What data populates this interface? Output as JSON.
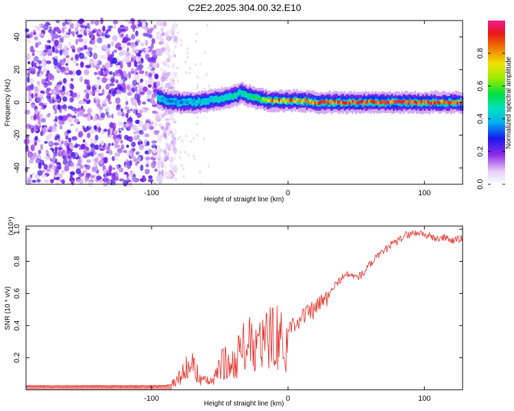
{
  "title": "C2E2.2025.304.00.32.E10",
  "colors": {
    "trace": "#e8302a",
    "axis": "#000000"
  },
  "chart_data": [
    {
      "type": "heatmap",
      "title": "C2E2.2025.304.00.32.E10",
      "xlabel": "Height of straight line (km)",
      "ylabel": "Frequency (Hz)",
      "xlim": [
        -192,
        128
      ],
      "ylim": [
        -50,
        50
      ],
      "x_ticks": [
        -100,
        0,
        100
      ],
      "y_ticks": [
        -40,
        -20,
        0,
        20,
        40
      ],
      "colorbar": {
        "label": "Normalized spectral amplitude",
        "range": [
          0,
          1
        ],
        "ticks": [
          0.0,
          0.2,
          0.4,
          0.6,
          0.8
        ],
        "colormap": "white-purple-blue-cyan-green-yellow-orange-red-magenta"
      },
      "noise_region": {
        "x_range": [
          -192,
          -88
        ],
        "typical_amplitude": 0.15
      },
      "signal_ridge": [
        {
          "x": -96,
          "freq": 3,
          "amplitude": 0.45
        },
        {
          "x": -90,
          "freq": 1,
          "amplitude": 0.35
        },
        {
          "x": -80,
          "freq": 0,
          "amplitude": 0.35
        },
        {
          "x": -70,
          "freq": 0,
          "amplitude": 0.4
        },
        {
          "x": -60,
          "freq": 1,
          "amplitude": 0.45
        },
        {
          "x": -50,
          "freq": 2,
          "amplitude": 0.45
        },
        {
          "x": -40,
          "freq": 4,
          "amplitude": 0.5
        },
        {
          "x": -35,
          "freq": 6,
          "amplitude": 0.45
        },
        {
          "x": -30,
          "freq": 4,
          "amplitude": 0.5
        },
        {
          "x": -20,
          "freq": 2,
          "amplitude": 0.6
        },
        {
          "x": -15,
          "freq": 1,
          "amplitude": 0.8
        },
        {
          "x": -10,
          "freq": 1,
          "amplitude": 0.85
        },
        {
          "x": 0,
          "freq": 1,
          "amplitude": 0.85
        },
        {
          "x": 10,
          "freq": 1,
          "amplitude": 0.8
        },
        {
          "x": 20,
          "freq": 0,
          "amplitude": 0.85
        },
        {
          "x": 40,
          "freq": 0,
          "amplitude": 0.9
        },
        {
          "x": 60,
          "freq": 0,
          "amplitude": 0.9
        },
        {
          "x": 80,
          "freq": 0,
          "amplitude": 0.9
        },
        {
          "x": 100,
          "freq": 0,
          "amplitude": 0.9
        },
        {
          "x": 128,
          "freq": 0,
          "amplitude": 0.9
        }
      ]
    },
    {
      "type": "line",
      "xlabel": "Height of straight line (km)",
      "ylabel": "SNR (10 * v/v)",
      "y_scale_label": "(x10⁴)",
      "xlim": [
        -192,
        128
      ],
      "ylim": [
        0,
        1.02
      ],
      "x_ticks": [
        -100,
        0,
        100
      ],
      "y_ticks": [
        0.2,
        0.4,
        0.6,
        0.8,
        1.0
      ],
      "series": [
        {
          "name": "SNR",
          "points": [
            [
              -192,
              0.02
            ],
            [
              -170,
              0.02
            ],
            [
              -150,
              0.02
            ],
            [
              -130,
              0.02
            ],
            [
              -110,
              0.02
            ],
            [
              -95,
              0.02
            ],
            [
              -88,
              0.03
            ],
            [
              -82,
              0.05
            ],
            [
              -76,
              0.12
            ],
            [
              -70,
              0.15
            ],
            [
              -65,
              0.08
            ],
            [
              -60,
              0.05
            ],
            [
              -54,
              0.06
            ],
            [
              -48,
              0.18
            ],
            [
              -42,
              0.14
            ],
            [
              -36,
              0.22
            ],
            [
              -30,
              0.3
            ],
            [
              -25,
              0.24
            ],
            [
              -20,
              0.28
            ],
            [
              -15,
              0.3
            ],
            [
              -10,
              0.38
            ],
            [
              -5,
              0.3
            ],
            [
              -2,
              0.16
            ],
            [
              0,
              0.38
            ],
            [
              5,
              0.42
            ],
            [
              10,
              0.45
            ],
            [
              15,
              0.48
            ],
            [
              20,
              0.5
            ],
            [
              25,
              0.55
            ],
            [
              30,
              0.58
            ],
            [
              35,
              0.66
            ],
            [
              40,
              0.7
            ],
            [
              45,
              0.72
            ],
            [
              50,
              0.7
            ],
            [
              55,
              0.72
            ],
            [
              60,
              0.78
            ],
            [
              65,
              0.82
            ],
            [
              70,
              0.86
            ],
            [
              75,
              0.9
            ],
            [
              80,
              0.92
            ],
            [
              85,
              0.96
            ],
            [
              90,
              0.97
            ],
            [
              95,
              0.98
            ],
            [
              100,
              0.97
            ],
            [
              105,
              0.95
            ],
            [
              110,
              0.94
            ],
            [
              115,
              0.95
            ],
            [
              120,
              0.93
            ],
            [
              128,
              0.94
            ]
          ]
        }
      ]
    }
  ]
}
